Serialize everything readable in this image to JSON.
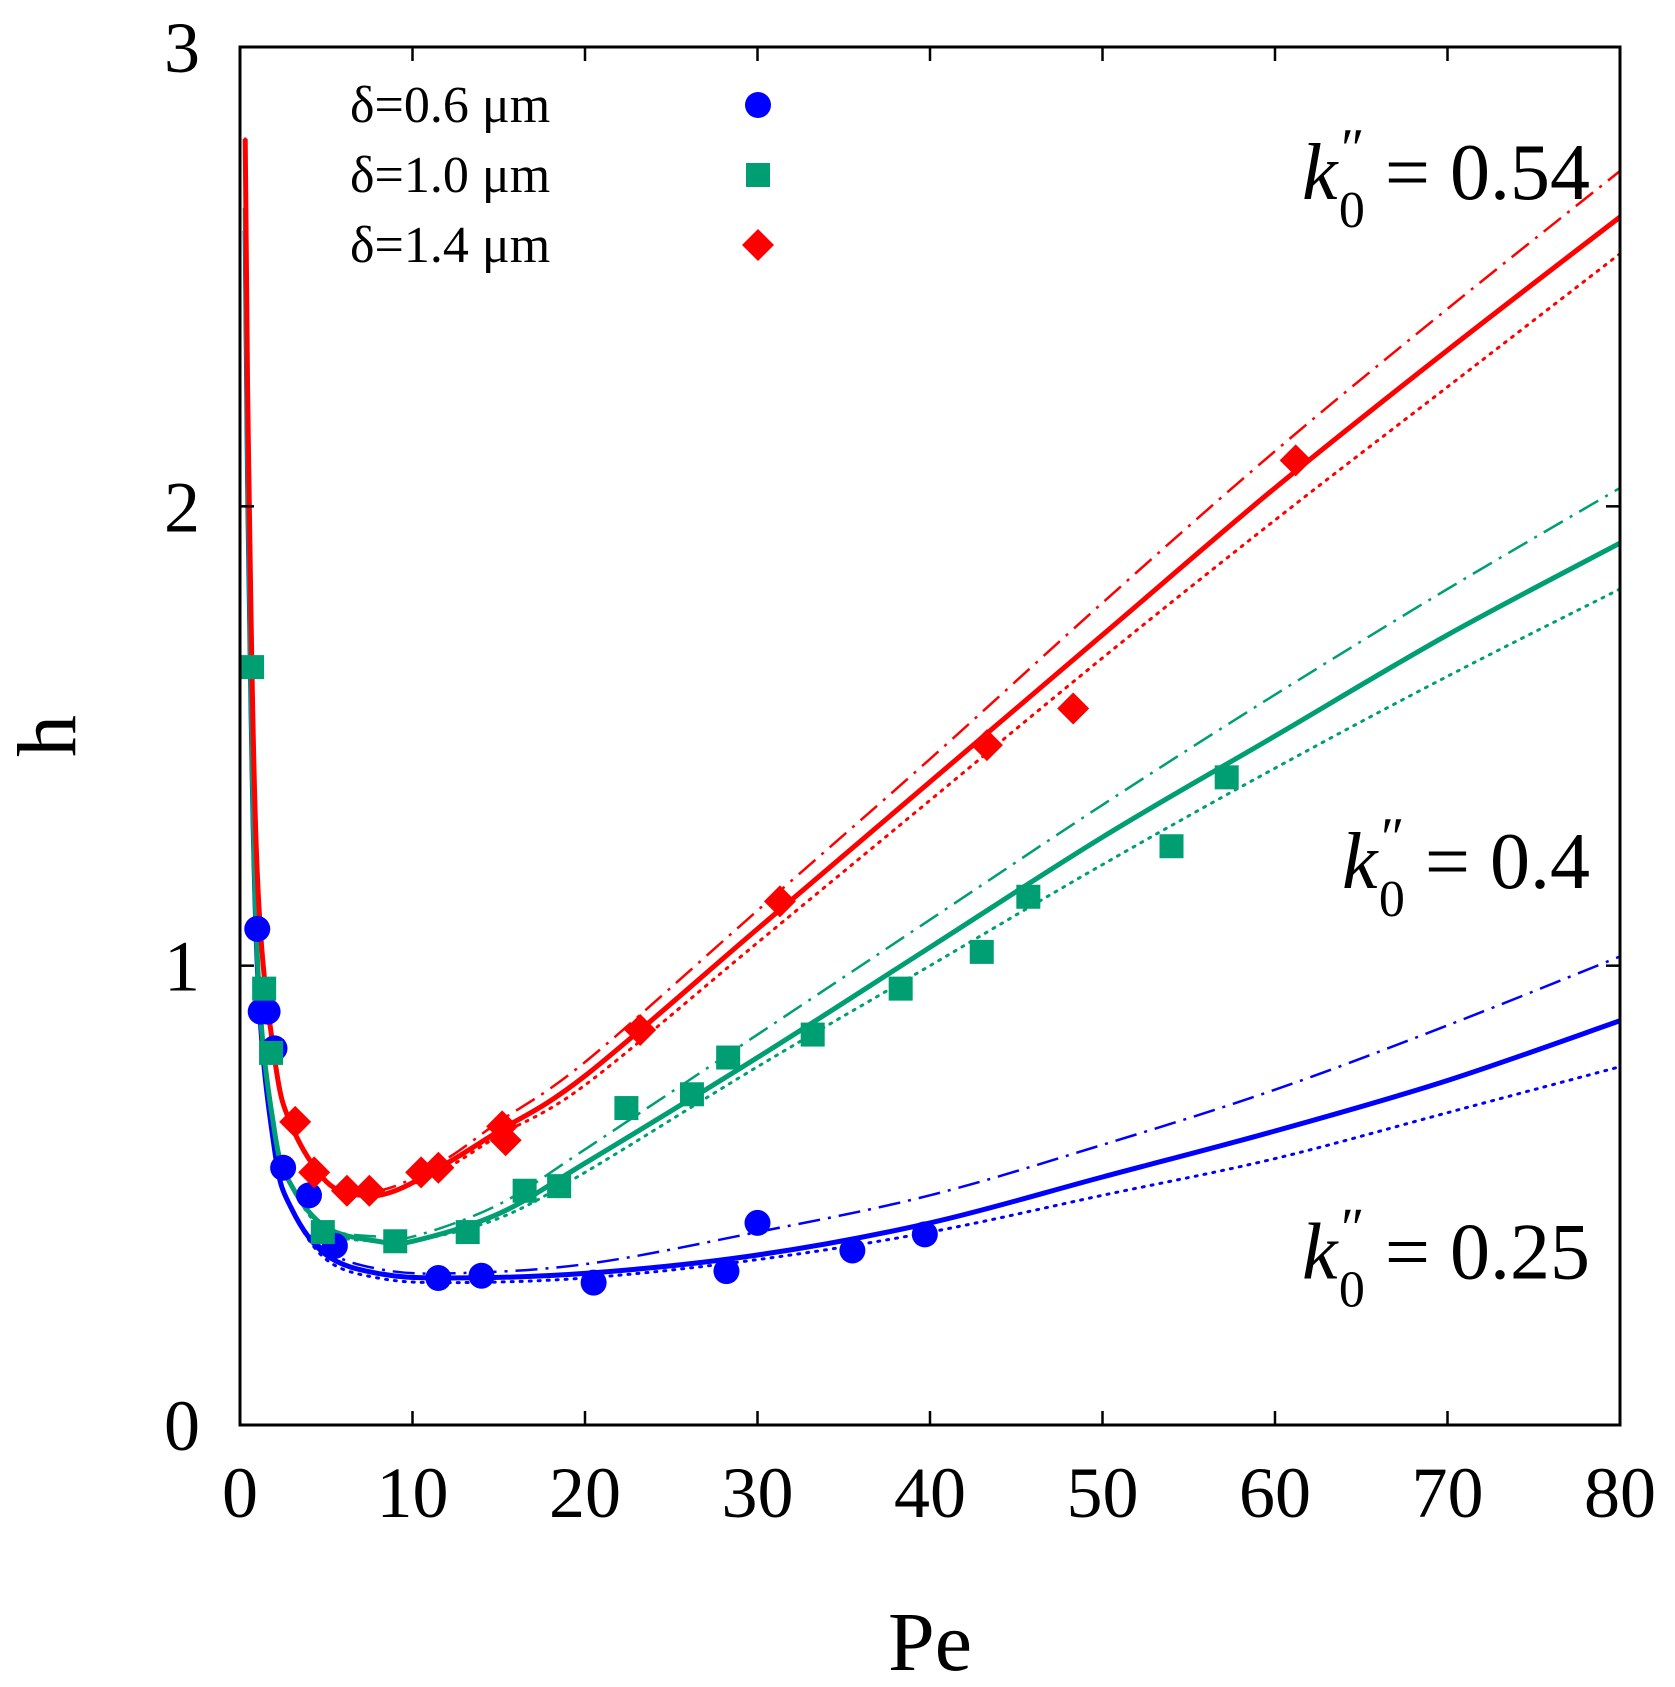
{
  "chart_data": {
    "type": "scatter",
    "xlabel": "Pe",
    "ylabel": "h",
    "xlim": [
      0,
      80
    ],
    "ylim": [
      0,
      3
    ],
    "x_ticks": [
      0,
      10,
      20,
      30,
      40,
      50,
      60,
      70,
      80
    ],
    "y_ticks": [
      0,
      1,
      2,
      3
    ],
    "x_tick_labels": [
      "0",
      "10",
      "20",
      "30",
      "40",
      "50",
      "60",
      "70",
      "80"
    ],
    "y_tick_labels": [
      "0",
      "1",
      "2",
      "3"
    ],
    "grid": false,
    "legend_position": "top-left",
    "series": [
      {
        "name": "δ=0.6 μm",
        "color": "#0000ff",
        "marker": "circle",
        "points": [
          [
            1.0,
            1.08
          ],
          [
            1.2,
            0.9
          ],
          [
            1.6,
            0.9
          ],
          [
            2.0,
            0.82
          ],
          [
            2.5,
            0.56
          ],
          [
            4.0,
            0.5
          ],
          [
            5.5,
            0.39
          ],
          [
            11.5,
            0.32
          ],
          [
            14.0,
            0.325
          ],
          [
            20.5,
            0.31
          ],
          [
            28.2,
            0.335
          ],
          [
            30.0,
            0.44
          ],
          [
            35.5,
            0.38
          ],
          [
            39.7,
            0.415
          ]
        ]
      },
      {
        "name": "δ=1.0 μm",
        "color": "#009e73",
        "marker": "square",
        "points": [
          [
            0.7,
            1.65
          ],
          [
            1.4,
            0.95
          ],
          [
            1.8,
            0.81
          ],
          [
            4.8,
            0.42
          ],
          [
            9.0,
            0.4
          ],
          [
            13.2,
            0.42
          ],
          [
            16.5,
            0.51
          ],
          [
            18.5,
            0.52
          ],
          [
            22.4,
            0.69
          ],
          [
            26.2,
            0.72
          ],
          [
            28.3,
            0.8
          ],
          [
            33.2,
            0.85
          ],
          [
            38.3,
            0.95
          ],
          [
            43.0,
            1.03
          ],
          [
            45.7,
            1.15
          ],
          [
            54.0,
            1.26
          ],
          [
            57.2,
            1.41
          ]
        ]
      },
      {
        "name": "δ=1.4 μm",
        "color": "#ff0000",
        "marker": "diamond",
        "points": [
          [
            3.2,
            0.66
          ],
          [
            4.3,
            0.55
          ],
          [
            6.2,
            0.51
          ],
          [
            7.5,
            0.51
          ],
          [
            10.5,
            0.55
          ],
          [
            11.5,
            0.56
          ],
          [
            15.2,
            0.65
          ],
          [
            15.4,
            0.62
          ],
          [
            23.2,
            0.86
          ],
          [
            31.3,
            1.14
          ],
          [
            43.3,
            1.48
          ],
          [
            48.3,
            1.56
          ],
          [
            61.2,
            2.1
          ]
        ]
      }
    ],
    "curves": [
      {
        "group": "k0'' = 0.25",
        "color": "#0000ff",
        "solid": [
          [
            0.3,
            2.6
          ],
          [
            0.5,
            1.9
          ],
          [
            1.0,
            1.0
          ],
          [
            2.0,
            0.6
          ],
          [
            3.0,
            0.47
          ],
          [
            5.0,
            0.37
          ],
          [
            8.0,
            0.33
          ],
          [
            12.0,
            0.32
          ],
          [
            20.0,
            0.33
          ],
          [
            30.0,
            0.37
          ],
          [
            40.0,
            0.44
          ],
          [
            50.0,
            0.54
          ],
          [
            60.0,
            0.64
          ],
          [
            70.0,
            0.75
          ],
          [
            80.0,
            0.88
          ]
        ],
        "dashdot": [
          [
            0.3,
            2.6
          ],
          [
            0.5,
            1.9
          ],
          [
            1.0,
            1.0
          ],
          [
            2.0,
            0.6
          ],
          [
            3.0,
            0.47
          ],
          [
            5.0,
            0.38
          ],
          [
            8.0,
            0.34
          ],
          [
            12.0,
            0.33
          ],
          [
            20.0,
            0.35
          ],
          [
            30.0,
            0.42
          ],
          [
            40.0,
            0.5
          ],
          [
            50.0,
            0.61
          ],
          [
            60.0,
            0.73
          ],
          [
            70.0,
            0.87
          ],
          [
            80.0,
            1.02
          ]
        ],
        "dotted": [
          [
            0.3,
            2.6
          ],
          [
            0.5,
            1.9
          ],
          [
            1.0,
            1.0
          ],
          [
            2.0,
            0.6
          ],
          [
            3.0,
            0.47
          ],
          [
            5.0,
            0.36
          ],
          [
            8.0,
            0.32
          ],
          [
            12.0,
            0.31
          ],
          [
            20.0,
            0.32
          ],
          [
            30.0,
            0.36
          ],
          [
            40.0,
            0.42
          ],
          [
            50.0,
            0.5
          ],
          [
            60.0,
            0.58
          ],
          [
            70.0,
            0.68
          ],
          [
            80.0,
            0.78
          ]
        ]
      },
      {
        "group": "k0'' = 0.4",
        "color": "#009e73",
        "solid": [
          [
            0.3,
            2.65
          ],
          [
            0.5,
            1.95
          ],
          [
            1.0,
            1.02
          ],
          [
            2.0,
            0.64
          ],
          [
            3.0,
            0.52
          ],
          [
            5.0,
            0.43
          ],
          [
            8.0,
            0.4
          ],
          [
            10.0,
            0.4
          ],
          [
            15.0,
            0.46
          ],
          [
            20.0,
            0.57
          ],
          [
            30.0,
            0.8
          ],
          [
            40.0,
            1.04
          ],
          [
            50.0,
            1.28
          ],
          [
            60.0,
            1.5
          ],
          [
            70.0,
            1.72
          ],
          [
            80.0,
            1.92
          ]
        ],
        "dashdot": [
          [
            0.3,
            2.65
          ],
          [
            0.5,
            1.95
          ],
          [
            1.0,
            1.02
          ],
          [
            2.0,
            0.64
          ],
          [
            3.0,
            0.52
          ],
          [
            5.0,
            0.43
          ],
          [
            8.0,
            0.41
          ],
          [
            10.0,
            0.41
          ],
          [
            15.0,
            0.48
          ],
          [
            20.0,
            0.6
          ],
          [
            30.0,
            0.85
          ],
          [
            40.0,
            1.1
          ],
          [
            50.0,
            1.35
          ],
          [
            60.0,
            1.59
          ],
          [
            70.0,
            1.82
          ],
          [
            80.0,
            2.04
          ]
        ],
        "dotted": [
          [
            0.3,
            2.65
          ],
          [
            0.5,
            1.95
          ],
          [
            1.0,
            1.02
          ],
          [
            2.0,
            0.64
          ],
          [
            3.0,
            0.52
          ],
          [
            5.0,
            0.42
          ],
          [
            8.0,
            0.4
          ],
          [
            10.0,
            0.4
          ],
          [
            15.0,
            0.45
          ],
          [
            20.0,
            0.55
          ],
          [
            30.0,
            0.78
          ],
          [
            40.0,
            1.0
          ],
          [
            50.0,
            1.22
          ],
          [
            60.0,
            1.43
          ],
          [
            70.0,
            1.63
          ],
          [
            80.0,
            1.82
          ]
        ]
      },
      {
        "group": "k0'' = 0.54",
        "color": "#ff0000",
        "solid": [
          [
            0.3,
            2.8
          ],
          [
            0.5,
            2.1
          ],
          [
            1.0,
            1.2
          ],
          [
            2.0,
            0.8
          ],
          [
            3.0,
            0.65
          ],
          [
            5.0,
            0.53
          ],
          [
            7.0,
            0.5
          ],
          [
            9.0,
            0.51
          ],
          [
            12.0,
            0.57
          ],
          [
            15.0,
            0.64
          ],
          [
            20.0,
            0.76
          ],
          [
            30.0,
            1.08
          ],
          [
            40.0,
            1.4
          ],
          [
            50.0,
            1.72
          ],
          [
            60.0,
            2.04
          ],
          [
            70.0,
            2.34
          ],
          [
            80.0,
            2.63
          ]
        ],
        "dashdot": [
          [
            0.3,
            2.8
          ],
          [
            0.5,
            2.1
          ],
          [
            1.0,
            1.2
          ],
          [
            2.0,
            0.8
          ],
          [
            3.0,
            0.65
          ],
          [
            5.0,
            0.53
          ],
          [
            7.0,
            0.51
          ],
          [
            9.0,
            0.52
          ],
          [
            12.0,
            0.58
          ],
          [
            15.0,
            0.66
          ],
          [
            20.0,
            0.79
          ],
          [
            30.0,
            1.12
          ],
          [
            40.0,
            1.45
          ],
          [
            50.0,
            1.79
          ],
          [
            60.0,
            2.12
          ],
          [
            70.0,
            2.43
          ],
          [
            80.0,
            2.73
          ]
        ],
        "dotted": [
          [
            0.3,
            2.8
          ],
          [
            0.5,
            2.1
          ],
          [
            1.0,
            1.2
          ],
          [
            2.0,
            0.8
          ],
          [
            3.0,
            0.65
          ],
          [
            5.0,
            0.53
          ],
          [
            7.0,
            0.5
          ],
          [
            9.0,
            0.51
          ],
          [
            12.0,
            0.56
          ],
          [
            15.0,
            0.63
          ],
          [
            20.0,
            0.74
          ],
          [
            30.0,
            1.05
          ],
          [
            40.0,
            1.36
          ],
          [
            50.0,
            1.67
          ],
          [
            60.0,
            1.97
          ],
          [
            70.0,
            2.26
          ],
          [
            80.0,
            2.55
          ]
        ]
      }
    ],
    "annotations": [
      {
        "prefix": "k",
        "sub": "0",
        "sup": "″",
        "text": " = 0.54",
        "near_x": 58,
        "near_y": 2.73
      },
      {
        "prefix": "k",
        "sub": "0",
        "sup": "″",
        "text": " = 0.4",
        "near_x": 58,
        "near_y": 1.23
      },
      {
        "prefix": "k",
        "sub": "0",
        "sup": "″",
        "text": " = 0.25",
        "near_x": 58,
        "near_y": 0.38
      }
    ]
  }
}
